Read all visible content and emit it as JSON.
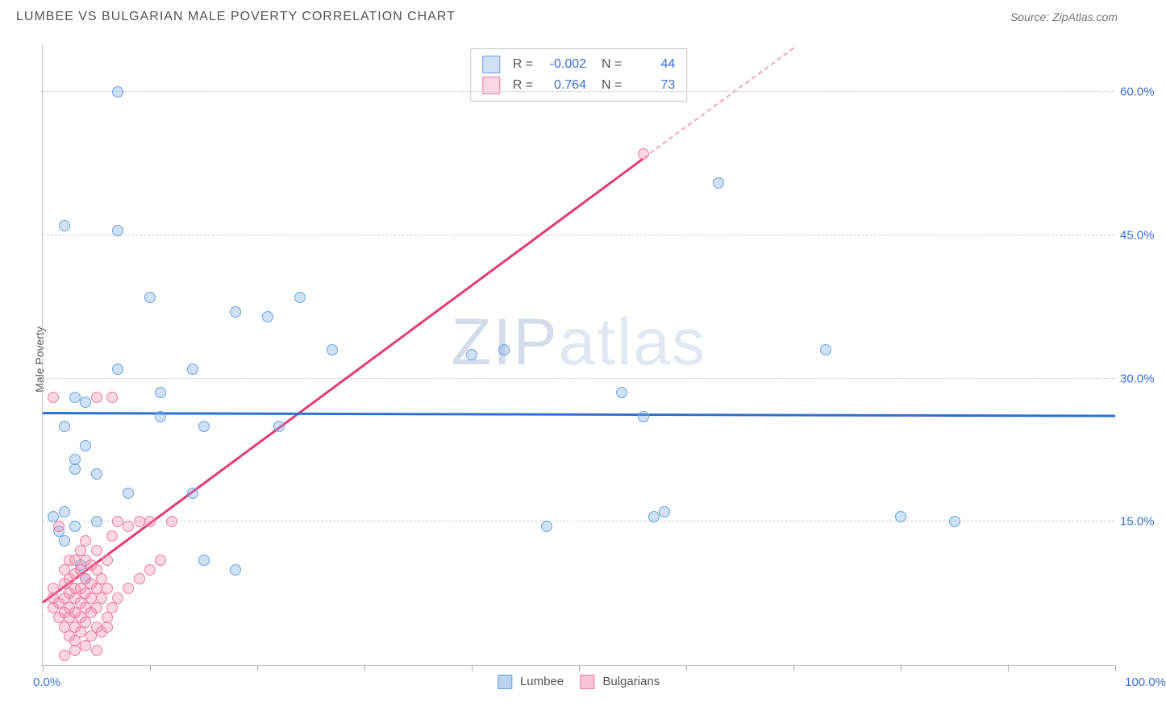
{
  "title": "LUMBEE VS BULGARIAN MALE POVERTY CORRELATION CHART",
  "source_label": "Source: ZipAtlas.com",
  "ylabel": "Male Poverty",
  "watermark": "ZIPatlas",
  "xaxis": {
    "min_label": "0.0%",
    "max_label": "100.0%",
    "min": 0,
    "max": 100,
    "ticks": [
      0,
      10,
      20,
      30,
      40,
      50,
      60,
      70,
      80,
      90,
      100
    ]
  },
  "yaxis": {
    "min": 0,
    "max": 65,
    "gridlines": [
      15,
      30,
      45,
      60
    ],
    "tick_labels": [
      "15.0%",
      "30.0%",
      "45.0%",
      "60.0%"
    ]
  },
  "series": [
    {
      "name": "Lumbee",
      "color_fill": "rgba(120,170,230,0.35)",
      "color_stroke": "#6aa3e0",
      "R": "-0.002",
      "N": "44",
      "trend": {
        "x1": 0,
        "y1": 26.3,
        "x2": 100,
        "y2": 26.0,
        "color": "#2f6fd6",
        "dash": false
      },
      "points": [
        [
          7,
          60
        ],
        [
          2,
          46
        ],
        [
          7,
          45.5
        ],
        [
          3,
          28
        ],
        [
          4,
          27.5
        ],
        [
          2,
          25
        ],
        [
          3,
          20.5
        ],
        [
          3,
          21.5
        ],
        [
          4,
          23
        ],
        [
          5,
          20
        ],
        [
          7,
          31
        ],
        [
          8,
          18
        ],
        [
          10,
          38.5
        ],
        [
          11,
          26
        ],
        [
          11,
          28.5
        ],
        [
          14,
          31
        ],
        [
          15,
          25
        ],
        [
          14,
          18
        ],
        [
          15,
          11
        ],
        [
          18,
          10
        ],
        [
          18,
          37
        ],
        [
          21,
          36.5
        ],
        [
          22,
          25
        ],
        [
          24,
          38.5
        ],
        [
          27,
          33
        ],
        [
          2,
          16
        ],
        [
          3,
          14.5
        ],
        [
          2,
          13
        ],
        [
          3.5,
          10.5
        ],
        [
          4,
          9
        ],
        [
          40,
          32.5
        ],
        [
          43,
          33
        ],
        [
          47,
          14.5
        ],
        [
          54,
          28.5
        ],
        [
          56,
          26
        ],
        [
          58,
          16
        ],
        [
          63,
          50.5
        ],
        [
          80,
          15.5
        ],
        [
          85,
          15
        ],
        [
          73,
          33
        ],
        [
          57,
          15.5
        ],
        [
          5,
          15
        ],
        [
          1,
          15.5
        ],
        [
          1.5,
          14
        ]
      ]
    },
    {
      "name": "Bulgarians",
      "color_fill": "rgba(240,140,170,0.35)",
      "color_stroke": "#e87fa6",
      "R": "0.764",
      "N": "73",
      "trend_solid": {
        "x1": 0,
        "y1": 6.5,
        "x2": 56,
        "y2": 53,
        "color": "#e63b77"
      },
      "trend_dash": {
        "x1": 56,
        "y1": 53,
        "x2": 70,
        "y2": 64.5,
        "color": "#f2a7c0"
      },
      "points": [
        [
          1,
          6
        ],
        [
          1,
          7
        ],
        [
          1,
          8
        ],
        [
          1.5,
          5
        ],
        [
          1.5,
          6.5
        ],
        [
          2,
          4
        ],
        [
          2,
          5.5
        ],
        [
          2,
          7
        ],
        [
          2,
          8.5
        ],
        [
          2,
          10
        ],
        [
          2.5,
          3
        ],
        [
          2.5,
          5
        ],
        [
          2.5,
          6
        ],
        [
          2.5,
          7.5
        ],
        [
          2.5,
          9
        ],
        [
          2.5,
          11
        ],
        [
          3,
          2.5
        ],
        [
          3,
          4
        ],
        [
          3,
          5.5
        ],
        [
          3,
          7
        ],
        [
          3,
          8
        ],
        [
          3,
          9.5
        ],
        [
          3,
          11
        ],
        [
          3.5,
          3.5
        ],
        [
          3.5,
          5
        ],
        [
          3.5,
          6.5
        ],
        [
          3.5,
          8
        ],
        [
          3.5,
          10
        ],
        [
          3.5,
          12
        ],
        [
          4,
          2
        ],
        [
          4,
          4.5
        ],
        [
          4,
          6
        ],
        [
          4,
          7.5
        ],
        [
          4,
          9
        ],
        [
          4,
          11
        ],
        [
          4,
          13
        ],
        [
          4.5,
          3
        ],
        [
          4.5,
          5.5
        ],
        [
          4.5,
          7
        ],
        [
          4.5,
          8.5
        ],
        [
          4.5,
          10.5
        ],
        [
          5,
          4
        ],
        [
          5,
          6
        ],
        [
          5,
          8
        ],
        [
          5,
          10
        ],
        [
          5,
          12
        ],
        [
          5.5,
          3.5
        ],
        [
          5.5,
          7
        ],
        [
          5.5,
          9
        ],
        [
          6,
          5
        ],
        [
          6,
          8
        ],
        [
          6,
          11
        ],
        [
          6.5,
          6
        ],
        [
          6.5,
          13.5
        ],
        [
          7,
          7
        ],
        [
          7,
          15
        ],
        [
          8,
          8
        ],
        [
          8,
          14.5
        ],
        [
          9,
          9
        ],
        [
          9,
          15
        ],
        [
          10,
          10
        ],
        [
          10,
          15
        ],
        [
          11,
          11
        ],
        [
          12,
          15
        ],
        [
          3,
          1.5
        ],
        [
          5,
          1.5
        ],
        [
          2,
          1
        ],
        [
          56,
          53.5
        ],
        [
          5,
          28
        ],
        [
          6.5,
          28
        ],
        [
          1,
          28
        ],
        [
          1.5,
          14.5
        ],
        [
          6,
          4
        ]
      ]
    }
  ],
  "legend_bottom": [
    {
      "label": "Lumbee",
      "fill": "rgba(120,170,230,0.5)",
      "stroke": "#6aa3e0"
    },
    {
      "label": "Bulgarians",
      "fill": "rgba(240,140,170,0.5)",
      "stroke": "#e87fa6"
    }
  ],
  "style": {
    "background": "#ffffff",
    "grid_color": "#d0d0d0",
    "axis_color": "#c0c0c0",
    "label_color": "#3b6fd6",
    "title_color": "#555",
    "marker_radius": 7,
    "marker_stroke_width": 1.5,
    "line_width": 2.5,
    "title_fontsize": 16,
    "label_fontsize": 15,
    "legend_fontsize": 16
  }
}
